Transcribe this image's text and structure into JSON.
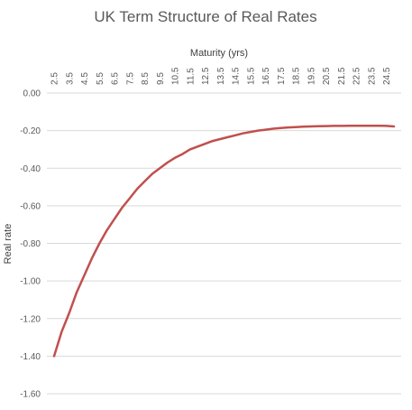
{
  "chart_data": {
    "type": "line",
    "title": "UK Term Structure of Real Rates",
    "xlabel": "Maturity (yrs)",
    "ylabel": "Real rate",
    "x_axis_position": "top",
    "ylim": [
      -1.6,
      0.0
    ],
    "yticks": [
      0.0,
      -0.2,
      -0.4,
      -0.6,
      -0.8,
      -1.0,
      -1.2,
      -1.4,
      -1.6
    ],
    "ytick_labels": [
      "0.00",
      "-0.20",
      "-0.40",
      "-0.60",
      "-0.80",
      "-1.00",
      "-1.20",
      "-1.40",
      "-1.60"
    ],
    "xtick_labels": [
      "2.5",
      "3.5",
      "4.5",
      "5.5",
      "6.5",
      "7.5",
      "8.5",
      "9.5",
      "10.5",
      "11.5",
      "12.5",
      "13.5",
      "14.5",
      "15.5",
      "16.5",
      "17.5",
      "18.5",
      "19.5",
      "20.5",
      "21.5",
      "22.5",
      "23.5",
      "24.5"
    ],
    "grid": true,
    "legend": "none",
    "color": "#c0504d",
    "series": [
      {
        "x": [
          2.5,
          3.0,
          3.5,
          4.0,
          4.5,
          5.0,
          5.5,
          6.0,
          6.5,
          7.0,
          7.5,
          8.0,
          8.5,
          9.0,
          9.5,
          10.0,
          10.5,
          11.0,
          11.5,
          12.0,
          12.5,
          13.0,
          13.5,
          14.0,
          14.5,
          15.0,
          15.5,
          16.0,
          16.5,
          17.0,
          17.5,
          18.0,
          18.5,
          19.0,
          19.5,
          20.0,
          20.5,
          21.0,
          21.5,
          22.0,
          22.5,
          23.0,
          23.5,
          24.0,
          24.5,
          25.0
        ],
        "values": [
          -1.4,
          -1.27,
          -1.17,
          -1.06,
          -0.97,
          -0.88,
          -0.8,
          -0.73,
          -0.67,
          -0.61,
          -0.56,
          -0.51,
          -0.47,
          -0.43,
          -0.4,
          -0.37,
          -0.345,
          -0.325,
          -0.3,
          -0.285,
          -0.27,
          -0.255,
          -0.245,
          -0.235,
          -0.225,
          -0.215,
          -0.207,
          -0.2,
          -0.195,
          -0.19,
          -0.186,
          -0.183,
          -0.181,
          -0.179,
          -0.178,
          -0.177,
          -0.176,
          -0.175,
          -0.175,
          -0.174,
          -0.174,
          -0.174,
          -0.174,
          -0.174,
          -0.175,
          -0.178
        ]
      }
    ]
  }
}
